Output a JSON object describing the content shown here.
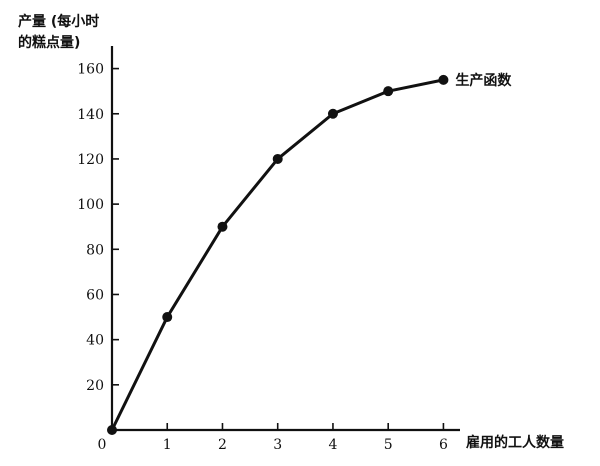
{
  "chart_data": {
    "type": "line",
    "title": "",
    "ylabel_lines": [
      "产量 (每小时",
      "的糕点量)"
    ],
    "xlabel": "雇用的工人数量",
    "x": [
      0,
      1,
      2,
      3,
      4,
      5,
      6
    ],
    "xticks": [
      "0",
      "1",
      "2",
      "3",
      "4",
      "5",
      "6"
    ],
    "yticks": [
      "20",
      "40",
      "60",
      "80",
      "100",
      "120",
      "140",
      "160"
    ],
    "xlim": [
      0,
      6.3
    ],
    "ylim": [
      0,
      170
    ],
    "grid": false,
    "series": [
      {
        "name": "生产函数",
        "values": [
          0,
          50,
          90,
          120,
          140,
          150,
          155
        ]
      }
    ]
  }
}
